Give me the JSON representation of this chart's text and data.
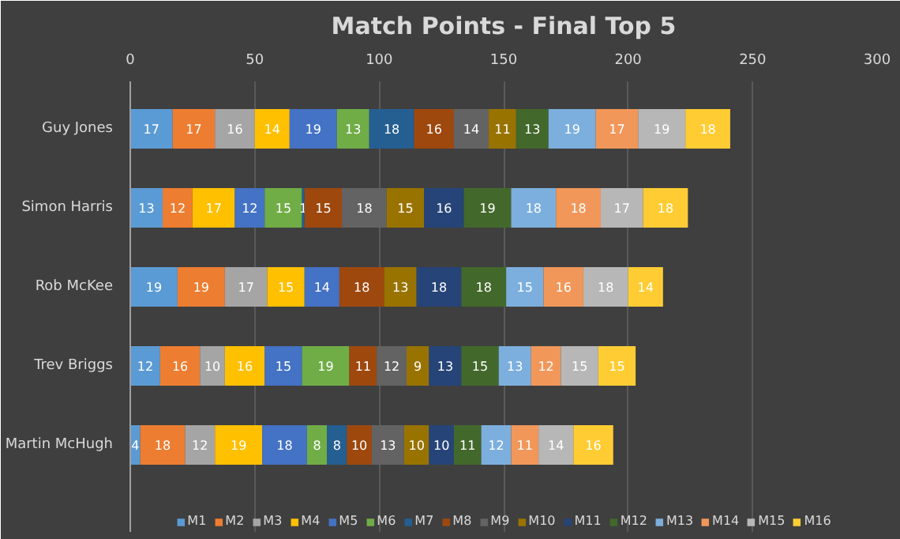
{
  "chart_data": {
    "type": "bar",
    "orientation": "horizontal",
    "stacked": true,
    "title": "Match Points - Final Top 5",
    "categories": [
      "Guy Jones",
      "Simon Harris",
      "Rob McKee",
      "Trev Briggs",
      "Martin McHugh"
    ],
    "xlim": [
      0,
      300
    ],
    "xticks": [
      0,
      50,
      100,
      150,
      200,
      250,
      300
    ],
    "grid": "x",
    "legend": "bottom",
    "series": [
      {
        "name": "M1",
        "color": "#5b9bd5",
        "values": [
          17,
          13,
          19,
          12,
          4
        ],
        "value_labels": [
          "17",
          "13",
          "19",
          "12",
          "4"
        ]
      },
      {
        "name": "M2",
        "color": "#ed7d31",
        "values": [
          17,
          12,
          19,
          16,
          18
        ],
        "value_labels": [
          "17",
          "12",
          "19",
          "16",
          "18"
        ]
      },
      {
        "name": "M3",
        "color": "#a5a5a5",
        "values": [
          16,
          0,
          17,
          10,
          12
        ],
        "value_labels": [
          "16",
          null,
          "17",
          "10",
          "12"
        ]
      },
      {
        "name": "M4",
        "color": "#ffc000",
        "values": [
          14,
          17,
          15,
          16,
          19
        ],
        "value_labels": [
          "14",
          "17",
          "15",
          "16",
          "19"
        ]
      },
      {
        "name": "M5",
        "color": "#4472c4",
        "values": [
          19,
          12,
          14,
          15,
          18
        ],
        "value_labels": [
          "19",
          "12",
          "14",
          "15",
          "18"
        ]
      },
      {
        "name": "M6",
        "color": "#70ad47",
        "values": [
          13,
          15,
          0,
          19,
          8
        ],
        "value_labels": [
          "13",
          "15",
          null,
          "19",
          "8"
        ]
      },
      {
        "name": "M7",
        "color": "#255e91",
        "values": [
          18,
          1,
          0,
          0,
          8
        ],
        "value_labels": [
          "18",
          "1",
          null,
          null,
          "8"
        ]
      },
      {
        "name": "M8",
        "color": "#9e480e",
        "values": [
          16,
          15,
          18,
          11,
          10
        ],
        "value_labels": [
          "16",
          "15",
          "18",
          "11",
          "10"
        ]
      },
      {
        "name": "M9",
        "color": "#636363",
        "values": [
          14,
          18,
          0,
          12,
          13
        ],
        "value_labels": [
          "14",
          "18",
          null,
          "12",
          "13"
        ]
      },
      {
        "name": "M10",
        "color": "#997300",
        "values": [
          11,
          15,
          13,
          9,
          10
        ],
        "value_labels": [
          "11",
          "15",
          "13",
          "9",
          "10"
        ]
      },
      {
        "name": "M11",
        "color": "#264478",
        "values": [
          0,
          16,
          18,
          13,
          10
        ],
        "value_labels": [
          null,
          "16",
          "18",
          "13",
          "10"
        ]
      },
      {
        "name": "M12",
        "color": "#43682b",
        "values": [
          13,
          19,
          18,
          15,
          11
        ],
        "value_labels": [
          "13",
          "19",
          "18",
          "15",
          "11"
        ]
      },
      {
        "name": "M13",
        "color": "#7cafdd",
        "values": [
          19,
          18,
          15,
          13,
          12
        ],
        "value_labels": [
          "19",
          "18",
          "15",
          "13",
          "12"
        ]
      },
      {
        "name": "M14",
        "color": "#f1975a",
        "values": [
          17,
          18,
          16,
          12,
          11
        ],
        "value_labels": [
          "17",
          "18",
          "16",
          "12",
          "11"
        ]
      },
      {
        "name": "M15",
        "color": "#b7b7b7",
        "values": [
          19,
          17,
          18,
          15,
          14
        ],
        "value_labels": [
          "19",
          "17",
          "18",
          "15",
          "14"
        ]
      },
      {
        "name": "M16",
        "color": "#ffcd33",
        "values": [
          18,
          18,
          14,
          15,
          16
        ],
        "value_labels": [
          "18",
          "18",
          "14",
          "15",
          "16"
        ]
      }
    ]
  }
}
